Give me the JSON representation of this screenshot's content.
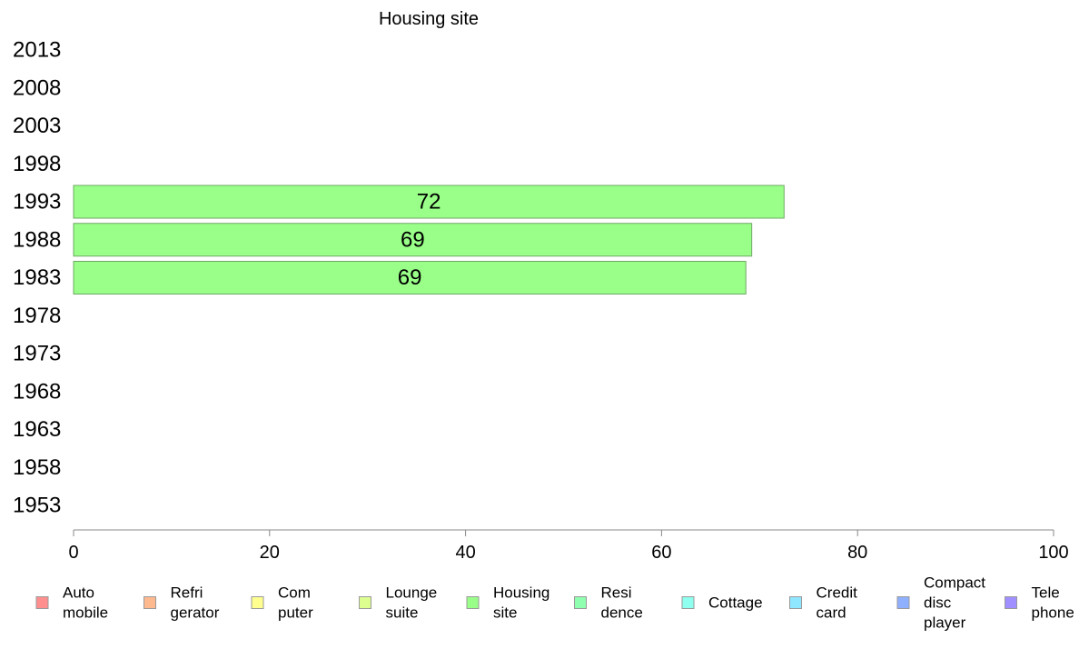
{
  "chart_data": {
    "type": "bar",
    "orientation": "horizontal",
    "title": "Housing site",
    "xlabel": "",
    "ylabel": "",
    "xlim": [
      0,
      100
    ],
    "xticks": [
      0,
      20,
      40,
      60,
      80,
      100
    ],
    "categories": [
      "2013",
      "2008",
      "2003",
      "1998",
      "1993",
      "1988",
      "1983",
      "1978",
      "1973",
      "1968",
      "1963",
      "1958",
      "1953"
    ],
    "series": [
      {
        "name": "Housing site",
        "color": "#99ff88",
        "values": [
          null,
          null,
          null,
          null,
          72.5,
          69.2,
          68.6,
          null,
          null,
          null,
          null,
          null,
          null
        ],
        "labels": [
          "",
          "",
          "",
          "",
          "72",
          "69",
          "69",
          "",
          "",
          "",
          "",
          "",
          ""
        ]
      }
    ],
    "grid": false,
    "legend": {
      "placement": "bottom",
      "items": [
        {
          "lines": [
            "Auto",
            "mobile"
          ],
          "color": "#ff8f8f"
        },
        {
          "lines": [
            "Refri",
            "gerator"
          ],
          "color": "#ffb98f"
        },
        {
          "lines": [
            "Com",
            "puter"
          ],
          "color": "#ffff8f"
        },
        {
          "lines": [
            "Lounge",
            "suite"
          ],
          "color": "#ddff8f"
        },
        {
          "lines": [
            "Housing",
            "site"
          ],
          "color": "#99ff88"
        },
        {
          "lines": [
            "Resi",
            "dence"
          ],
          "color": "#8fffb0"
        },
        {
          "lines": [
            "Cottage"
          ],
          "color": "#8ffff0"
        },
        {
          "lines": [
            "Credit",
            "card"
          ],
          "color": "#8fe6ff"
        },
        {
          "lines": [
            "Compact",
            "disc",
            "player"
          ],
          "color": "#8fb0ff"
        },
        {
          "lines": [
            "Tele",
            "phone"
          ],
          "color": "#a08fff"
        }
      ]
    }
  }
}
